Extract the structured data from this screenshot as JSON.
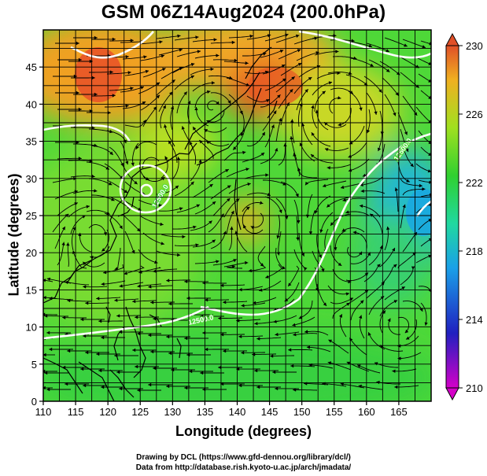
{
  "title": "GSM 06Z14Aug2024 (200.0hPa)",
  "xlabel": "Longitude (degrees)",
  "ylabel": "Latitude  (degrees)",
  "credits": [
    "Drawing by DCL (https://www.gfd-dennou.org/library/dcl/)",
    "Data from http://database.rish.kyoto-u.ac.jp/arch/jmadata/"
  ],
  "chart_data": {
    "type": "heatmap",
    "title": "GSM 06Z14Aug2024 (200.0hPa)",
    "xlabel": "Longitude (degrees)",
    "ylabel": "Latitude  (degrees)",
    "xlim": [
      110,
      170
    ],
    "ylim": [
      0,
      50
    ],
    "x_ticks": [
      110,
      115,
      120,
      125,
      130,
      135,
      140,
      145,
      150,
      155,
      160,
      165
    ],
    "y_ticks": [
      0,
      5,
      10,
      15,
      20,
      25,
      30,
      35,
      40,
      45
    ],
    "colorbar": {
      "min": 210,
      "max": 230,
      "ticks": [
        230,
        226,
        222,
        218,
        214,
        210
      ],
      "colors": [
        "#d400c8",
        "#2020c0",
        "#1aa0e8",
        "#20d8a0",
        "#30d030",
        "#a0e020",
        "#f0b020",
        "#e05028"
      ],
      "extend": "both"
    },
    "contour_labels": [
      "12500.0",
      "12500.0",
      "12500.0"
    ],
    "grid": true,
    "overlays": [
      "streamlines",
      "coastlines",
      "contours"
    ]
  }
}
